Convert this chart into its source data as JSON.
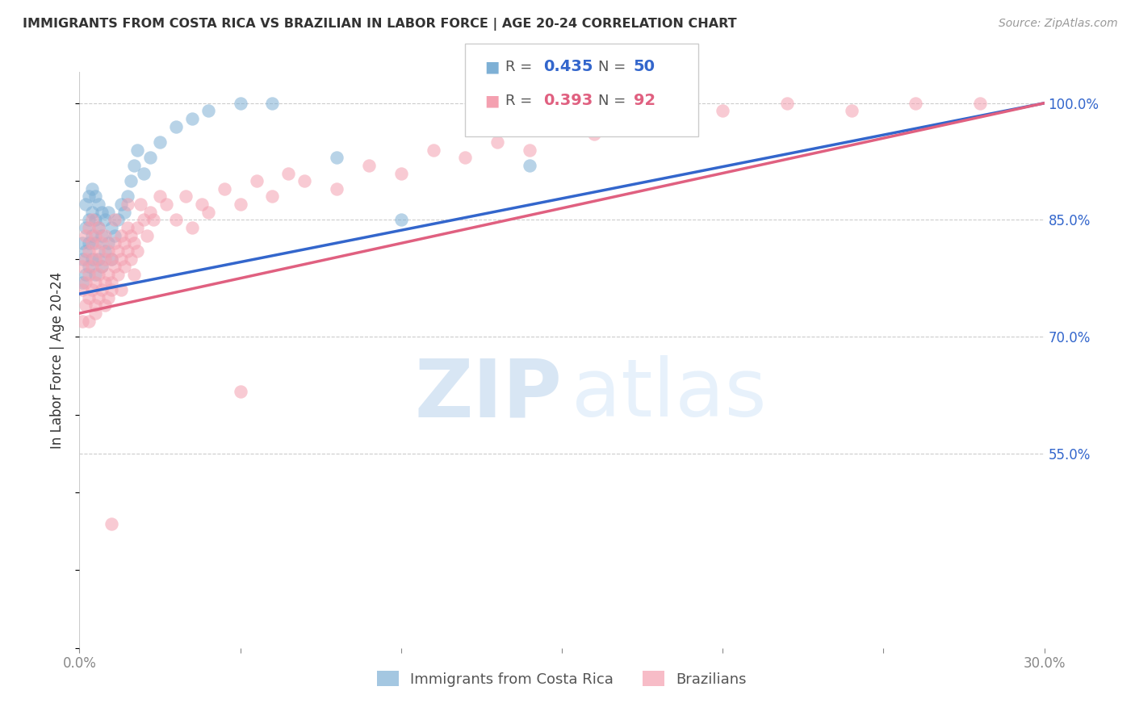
{
  "title": "IMMIGRANTS FROM COSTA RICA VS BRAZILIAN IN LABOR FORCE | AGE 20-24 CORRELATION CHART",
  "source": "Source: ZipAtlas.com",
  "ylabel": "In Labor Force | Age 20-24",
  "series1_label": "Immigrants from Costa Rica",
  "series2_label": "Brazilians",
  "series1_color": "#7EB0D5",
  "series2_color": "#F4A0B0",
  "series1_line_color": "#3366CC",
  "series2_line_color": "#E06080",
  "series1_R": 0.435,
  "series1_N": 50,
  "series2_R": 0.393,
  "series2_N": 92,
  "xlim": [
    0.0,
    0.3
  ],
  "ylim": [
    0.3,
    1.04
  ],
  "xticks": [
    0.0,
    0.05,
    0.1,
    0.15,
    0.2,
    0.25,
    0.3
  ],
  "xticklabels": [
    "0.0%",
    "",
    "",
    "",
    "",
    "",
    "30.0%"
  ],
  "yticks_right": [
    0.55,
    0.7,
    0.85,
    1.0
  ],
  "ytick_labels_right": [
    "55.0%",
    "70.0%",
    "85.0%",
    "100.0%"
  ],
  "costa_rica_x": [
    0.001,
    0.001,
    0.001,
    0.002,
    0.002,
    0.002,
    0.002,
    0.003,
    0.003,
    0.003,
    0.003,
    0.004,
    0.004,
    0.004,
    0.004,
    0.005,
    0.005,
    0.005,
    0.005,
    0.006,
    0.006,
    0.006,
    0.007,
    0.007,
    0.007,
    0.008,
    0.008,
    0.009,
    0.009,
    0.01,
    0.01,
    0.011,
    0.012,
    0.013,
    0.014,
    0.015,
    0.016,
    0.017,
    0.018,
    0.02,
    0.022,
    0.025,
    0.03,
    0.035,
    0.04,
    0.05,
    0.06,
    0.08,
    0.1,
    0.14
  ],
  "costa_rica_y": [
    0.77,
    0.8,
    0.82,
    0.78,
    0.81,
    0.84,
    0.87,
    0.79,
    0.82,
    0.85,
    0.88,
    0.8,
    0.83,
    0.86,
    0.89,
    0.78,
    0.82,
    0.85,
    0.88,
    0.8,
    0.84,
    0.87,
    0.79,
    0.83,
    0.86,
    0.81,
    0.85,
    0.82,
    0.86,
    0.8,
    0.84,
    0.83,
    0.85,
    0.87,
    0.86,
    0.88,
    0.9,
    0.92,
    0.94,
    0.91,
    0.93,
    0.95,
    0.97,
    0.98,
    0.99,
    1.0,
    1.0,
    0.93,
    0.85,
    0.92
  ],
  "brazil_x": [
    0.001,
    0.001,
    0.001,
    0.002,
    0.002,
    0.002,
    0.002,
    0.003,
    0.003,
    0.003,
    0.003,
    0.003,
    0.004,
    0.004,
    0.004,
    0.004,
    0.005,
    0.005,
    0.005,
    0.005,
    0.005,
    0.006,
    0.006,
    0.006,
    0.006,
    0.007,
    0.007,
    0.007,
    0.008,
    0.008,
    0.008,
    0.008,
    0.009,
    0.009,
    0.009,
    0.01,
    0.01,
    0.01,
    0.011,
    0.011,
    0.011,
    0.012,
    0.012,
    0.013,
    0.013,
    0.013,
    0.014,
    0.014,
    0.015,
    0.015,
    0.015,
    0.016,
    0.016,
    0.017,
    0.017,
    0.018,
    0.018,
    0.019,
    0.02,
    0.021,
    0.022,
    0.023,
    0.025,
    0.027,
    0.03,
    0.033,
    0.035,
    0.038,
    0.04,
    0.045,
    0.05,
    0.055,
    0.06,
    0.065,
    0.07,
    0.08,
    0.09,
    0.1,
    0.11,
    0.12,
    0.13,
    0.14,
    0.15,
    0.16,
    0.17,
    0.2,
    0.22,
    0.24,
    0.26,
    0.28,
    0.05,
    0.01
  ],
  "brazil_y": [
    0.76,
    0.72,
    0.79,
    0.74,
    0.77,
    0.8,
    0.83,
    0.75,
    0.78,
    0.81,
    0.72,
    0.84,
    0.76,
    0.79,
    0.82,
    0.85,
    0.74,
    0.77,
    0.8,
    0.83,
    0.73,
    0.75,
    0.78,
    0.81,
    0.84,
    0.76,
    0.79,
    0.82,
    0.74,
    0.77,
    0.8,
    0.83,
    0.75,
    0.78,
    0.81,
    0.77,
    0.8,
    0.76,
    0.79,
    0.82,
    0.85,
    0.78,
    0.81,
    0.8,
    0.83,
    0.76,
    0.79,
    0.82,
    0.81,
    0.84,
    0.87,
    0.8,
    0.83,
    0.82,
    0.78,
    0.81,
    0.84,
    0.87,
    0.85,
    0.83,
    0.86,
    0.85,
    0.88,
    0.87,
    0.85,
    0.88,
    0.84,
    0.87,
    0.86,
    0.89,
    0.87,
    0.9,
    0.88,
    0.91,
    0.9,
    0.89,
    0.92,
    0.91,
    0.94,
    0.93,
    0.95,
    0.94,
    0.97,
    0.96,
    0.98,
    0.99,
    1.0,
    0.99,
    1.0,
    1.0,
    0.63,
    0.46
  ]
}
